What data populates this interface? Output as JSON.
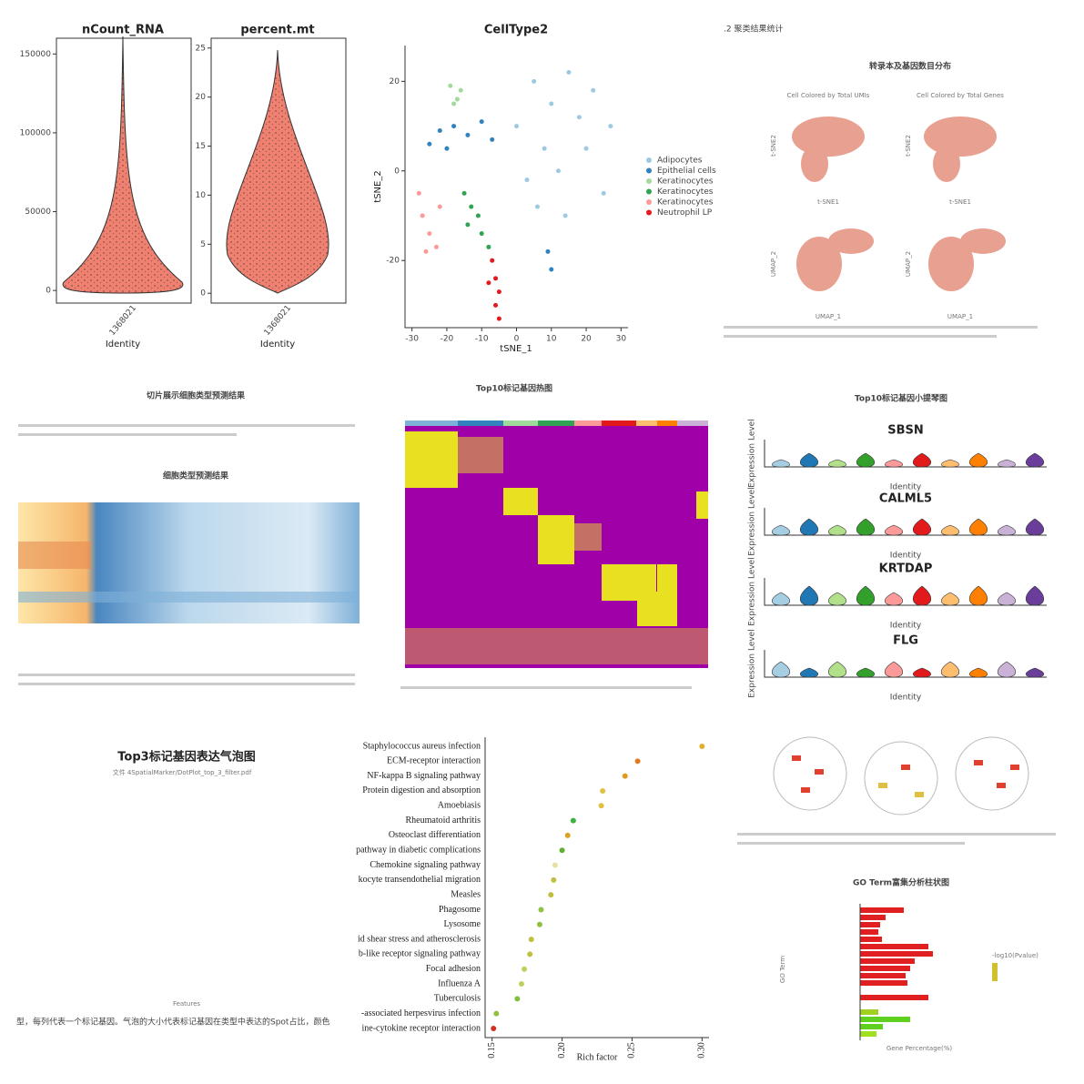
{
  "violin_plots": [
    {
      "title": "nCount_RNA",
      "category": "1368021",
      "xlabel": "Identity",
      "ylim": [
        -8000,
        160000
      ],
      "yticks": [
        0,
        50000,
        100000,
        150000
      ]
    },
    {
      "title": "percent.mt",
      "category": "1368021",
      "xlabel": "Identity",
      "ylim": [
        -1,
        26
      ],
      "yticks": [
        0,
        5,
        10,
        15,
        20,
        25
      ]
    }
  ],
  "tsne": {
    "type": "scatter",
    "title": "CellType2",
    "xlabel": "tSNE_1",
    "ylabel": "tSNE_2",
    "xlim": [
      -32,
      32
    ],
    "ylim": [
      -35,
      28
    ],
    "xticks": [
      -30,
      -20,
      -10,
      0,
      10,
      20,
      30
    ],
    "yticks": [
      -20,
      0,
      20
    ],
    "series": [
      {
        "name": "Adipocytes",
        "color": "#9ecae1",
        "x": [
          0,
          5,
          10,
          15,
          20,
          25,
          3,
          12,
          18,
          22,
          8,
          27,
          14,
          6
        ],
        "values": [
          10,
          20,
          15,
          22,
          5,
          -5,
          -2,
          0,
          12,
          18,
          5,
          10,
          -10,
          -8
        ]
      },
      {
        "name": "Epithelial cells",
        "color": "#3182bd",
        "x": [
          -25,
          -22,
          -18,
          -14,
          -10,
          -7,
          -20,
          9,
          10
        ],
        "values": [
          6,
          9,
          10,
          8,
          11,
          7,
          5,
          -18,
          -22
        ]
      },
      {
        "name": "Keratinocytes",
        "color": "#a1d99b",
        "x": [
          -19,
          -17,
          -16,
          -18
        ],
        "values": [
          19,
          16,
          18,
          15
        ]
      },
      {
        "name": "Keratinocytes",
        "color": "#31a354",
        "x": [
          -15,
          -13,
          -11,
          -10,
          -14,
          -8
        ],
        "values": [
          -5,
          -8,
          -10,
          -14,
          -12,
          -17
        ]
      },
      {
        "name": "Keratinocytes",
        "color": "#fb9a99",
        "x": [
          -28,
          -27,
          -25,
          -23,
          -26,
          -22
        ],
        "values": [
          -5,
          -10,
          -14,
          -17,
          -18,
          -8
        ]
      },
      {
        "name": "Neutrophil LP",
        "color": "#e31a1c",
        "x": [
          -7,
          -6,
          -5,
          -8,
          -6,
          -5
        ],
        "values": [
          -20,
          -24,
          -27,
          -25,
          -30,
          -33
        ]
      }
    ]
  },
  "report": {
    "heading": ".2 聚类结果统计",
    "subtitle": "转录本及基因数目分布",
    "umi": "Cell Colored by Total UMIs",
    "genes": "Cell Colored by Total Genes",
    "tsne1": "t-SNE1",
    "tsne2": "t-SNE2",
    "umap1": "UMAP_1",
    "umap2": "UMAP_2"
  },
  "celltype": {
    "title": "切片展示细胞类型预测结果",
    "heatmap_title": "细胞类型预测结果"
  },
  "marker_heatmap": {
    "title": "Top10标记基因热图"
  },
  "violin_stack": {
    "title": "Top10标记基因小提琴图",
    "genes": [
      "SBSN",
      "CALML5",
      "KRTDAP",
      "FLG"
    ],
    "ylabel": "Expression Level",
    "xlabel": "Identity"
  },
  "dotplot": {
    "title": "Top3标记基因表达气泡图",
    "file": "文件 4SpatialMarker/DotPlot_top_3_filter.pdf",
    "xlabel": "Features",
    "caption": "型，每列代表一个标记基因。气泡的大小代表标记基因在类型中表达的Spot占比，颜色"
  },
  "enrichment": {
    "type": "scatter",
    "xlabel": "Rich factor",
    "categories": [
      "Staphylococcus aureus infection",
      "ECM-receptor interaction",
      "NF-kappa B signaling pathway",
      "Protein digestion and absorption",
      "Amoebiasis",
      "Rheumatoid arthritis",
      "Osteoclast differentiation",
      "pathway in diabetic complications",
      "Chemokine signaling pathway",
      "kocyte transendothelial migration",
      "Measles",
      "Phagosome",
      "Lysosome",
      "id shear stress and atherosclerosis",
      "b-like receptor signaling pathway",
      "Focal adhesion",
      "Influenza A",
      "Tuberculosis",
      "-associated herpesvirus infection",
      "ine-cytokine receptor interaction"
    ],
    "values": [
      0.3,
      0.254,
      0.245,
      0.229,
      0.228,
      0.208,
      0.204,
      0.2,
      0.195,
      0.194,
      0.192,
      0.185,
      0.184,
      0.178,
      0.177,
      0.173,
      0.171,
      0.168,
      0.153,
      0.151
    ],
    "colors": [
      "#e0b030",
      "#e07a20",
      "#e09a20",
      "#e0c040",
      "#e0c040",
      "#40b040",
      "#e0a020",
      "#60b030",
      "#e8e0a0",
      "#c0c040",
      "#c0c040",
      "#90c040",
      "#90c040",
      "#c0c040",
      "#c0c040",
      "#c0d060",
      "#c0d060",
      "#80c040",
      "#90c040",
      "#d03020"
    ],
    "xlim": [
      0.145,
      0.305
    ],
    "xticks": [
      {
        "value": 0.15,
        "label": "0.15"
      },
      {
        "value": 0.2,
        "label": "0.20"
      },
      {
        "value": 0.25,
        "label": "0.25"
      },
      {
        "value": 0.3,
        "label": "0.30"
      }
    ]
  },
  "go": {
    "title": "GO Term富集分析柱状图",
    "xlabel": "Gene Percentage(%)",
    "ylabel": "GO Term",
    "legend": "-log10(Pvalue)"
  }
}
